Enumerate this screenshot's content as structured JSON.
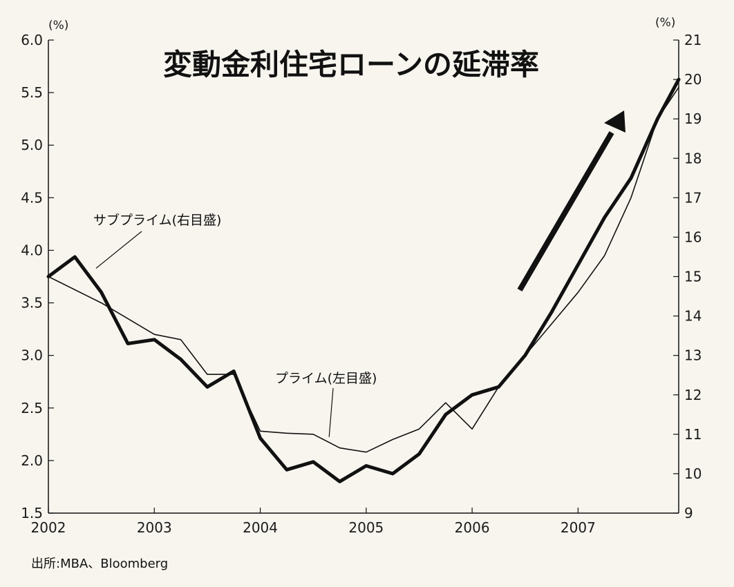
{
  "chart_data": {
    "type": "line",
    "title": "変動金利住宅ローンの延滞率",
    "source": "出所:MBA、Bloomberg",
    "x_ticks": [
      "2002",
      "2003",
      "2004",
      "2005",
      "2006",
      "2007"
    ],
    "x_range": [
      2002.0,
      2007.95
    ],
    "left_axis": {
      "unit": "(%)",
      "range": [
        1.5,
        6.0
      ],
      "ticks": [
        "1.5",
        "2.0",
        "2.5",
        "3.0",
        "3.5",
        "4.0",
        "4.5",
        "5.0",
        "5.5",
        "6.0"
      ]
    },
    "right_axis": {
      "unit": "(%)",
      "range": [
        9,
        21
      ],
      "ticks": [
        "9",
        "10",
        "11",
        "12",
        "13",
        "14",
        "15",
        "16",
        "17",
        "18",
        "19",
        "20",
        "21"
      ]
    },
    "series": [
      {
        "name": "サブプライム(右目盛)",
        "axis": "right",
        "x": [
          2002.0,
          2002.25,
          2002.5,
          2002.75,
          2003.0,
          2003.25,
          2003.5,
          2003.75,
          2004.0,
          2004.25,
          2004.5,
          2004.75,
          2005.0,
          2005.25,
          2005.5,
          2005.75,
          2006.0,
          2006.25,
          2006.5,
          2006.75,
          2007.0,
          2007.25,
          2007.5,
          2007.75,
          2007.95
        ],
        "values": [
          15.0,
          15.5,
          14.6,
          13.3,
          13.4,
          12.9,
          12.2,
          12.6,
          10.9,
          10.1,
          10.3,
          9.8,
          10.2,
          10.0,
          10.5,
          11.5,
          12.0,
          12.2,
          13.0,
          14.1,
          15.3,
          16.5,
          17.5,
          19.0,
          20.0
        ]
      },
      {
        "name": "プライム(左目盛)",
        "axis": "left",
        "x": [
          2002.0,
          2002.5,
          2003.0,
          2003.25,
          2003.5,
          2003.75,
          2004.0,
          2004.25,
          2004.5,
          2004.75,
          2005.0,
          2005.25,
          2005.5,
          2005.75,
          2006.0,
          2006.25,
          2006.5,
          2006.75,
          2007.0,
          2007.25,
          2007.5,
          2007.75,
          2007.95
        ],
        "values": [
          3.75,
          3.5,
          3.2,
          3.15,
          2.82,
          2.82,
          2.28,
          2.26,
          2.25,
          2.12,
          2.08,
          2.2,
          2.3,
          2.55,
          2.3,
          2.7,
          3.0,
          3.3,
          3.6,
          3.95,
          4.5,
          5.25,
          5.55
        ]
      }
    ],
    "annotations": [
      {
        "text": "サブプライム(右目盛)",
        "target_series": 0
      },
      {
        "text": "プライム(左目盛)",
        "target_series": 1
      }
    ],
    "trend_arrow": "up-right",
    "grid": false,
    "legend": "none",
    "colors": {
      "line": "#111111",
      "background": "#f7f5ee",
      "text": "#1a1a1a"
    }
  }
}
